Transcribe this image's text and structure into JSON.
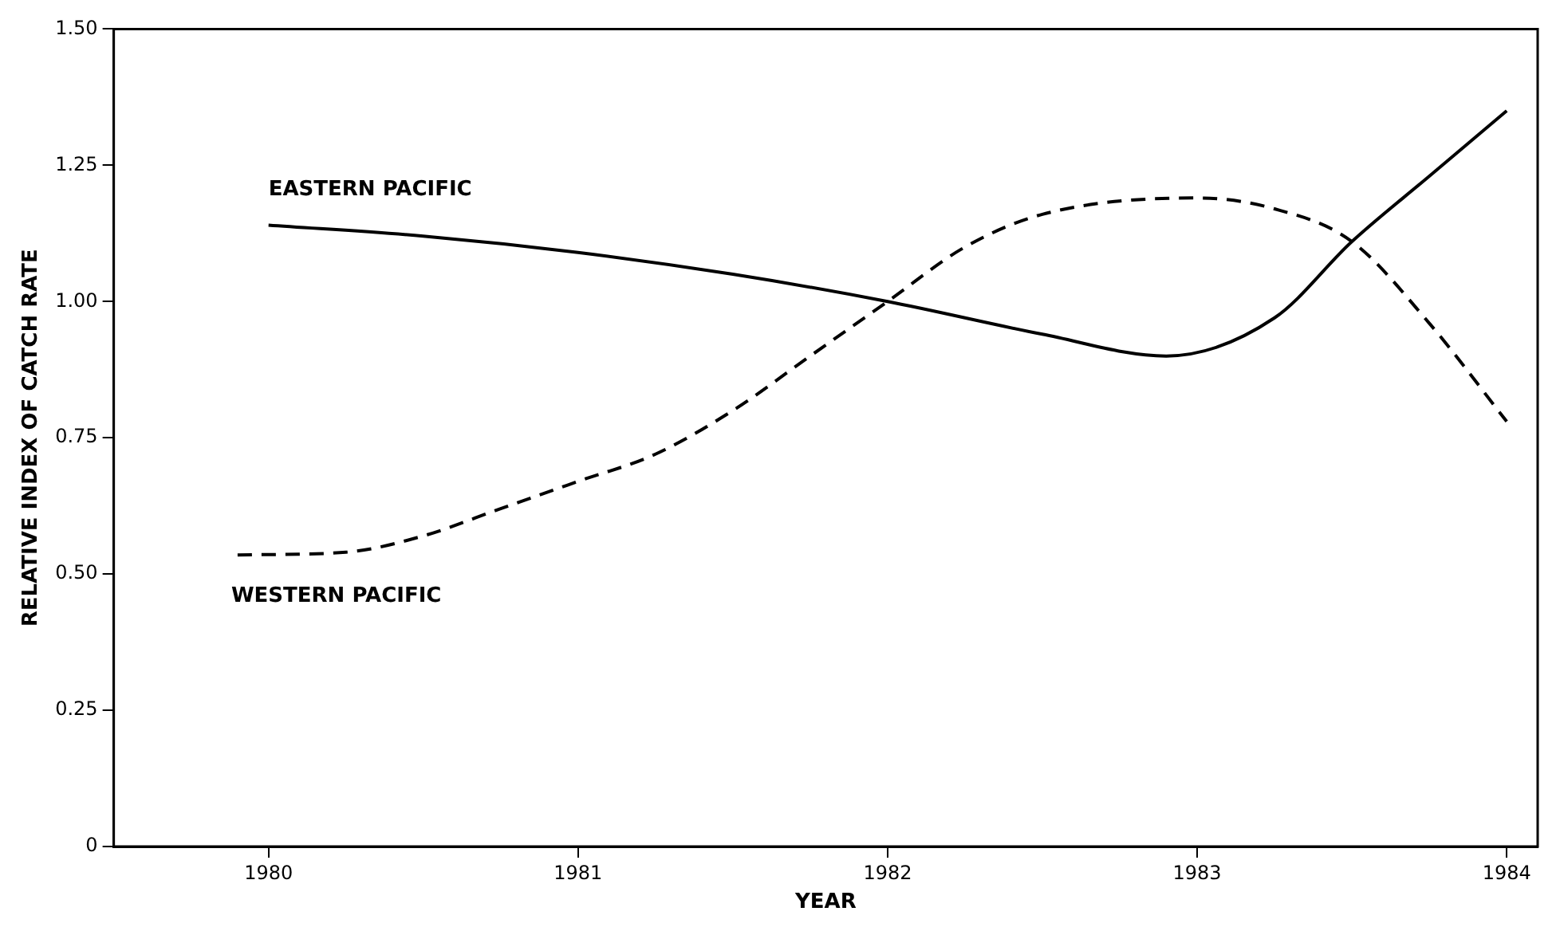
{
  "chart_data": {
    "type": "line",
    "xlabel": "YEAR",
    "ylabel": "RELATIVE INDEX OF CATCH RATE",
    "xlim": [
      1979.5,
      1984.1
    ],
    "xticks": [
      1980,
      1981,
      1982,
      1983,
      1984
    ],
    "ylim": [
      0,
      1.5
    ],
    "yticks": [
      0,
      {
        "value": 0.25,
        "label": "0.25"
      },
      {
        "value": 0.5,
        "label": "0.50"
      },
      {
        "value": 0.75,
        "label": "0.75"
      },
      {
        "value": 1,
        "label": "1.00"
      },
      {
        "value": 1.25,
        "label": "1.25"
      },
      {
        "value": 1.5,
        "label": "1.50"
      }
    ],
    "grid": false,
    "legend": false,
    "marker": "none",
    "series": [
      {
        "name": "EASTERN PACIFIC",
        "color": "#000000",
        "line_style": "solid",
        "x": [
          1980,
          1980.5,
          1981,
          1981.5,
          1982,
          1982.5,
          1982.9,
          1983.25,
          1983.5,
          1983.75,
          1984
        ],
        "values": [
          1.14,
          1.12,
          1.09,
          1.05,
          1.0,
          0.94,
          0.9,
          0.97,
          1.11,
          1.23,
          1.35
        ]
      },
      {
        "name": "WESTERN PACIFIC",
        "color": "#000000",
        "line_style": "dashed",
        "x": [
          1979.9,
          1980.25,
          1980.5,
          1980.75,
          1981,
          1981.25,
          1981.5,
          1981.75,
          1982,
          1982.25,
          1982.5,
          1983,
          1983.25,
          1983.5,
          1983.75,
          1984
        ],
        "values": [
          0.535,
          0.54,
          0.57,
          0.62,
          0.67,
          0.72,
          0.8,
          0.9,
          1.0,
          1.1,
          1.16,
          1.19,
          1.17,
          1.11,
          0.96,
          0.78
        ]
      }
    ]
  }
}
